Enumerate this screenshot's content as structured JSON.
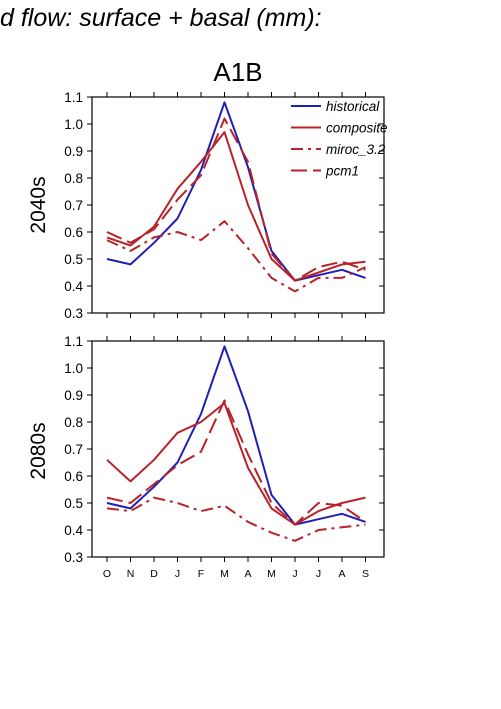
{
  "figure": {
    "title": "d flow: surface + basal (mm):",
    "scenario": "A1B"
  },
  "colors": {
    "historical": "#1f1fb8",
    "scenario": "#b8232a"
  },
  "chart_data": [
    {
      "type": "line",
      "panel_label": "2040s",
      "title": "A1B",
      "categories": [
        "O",
        "N",
        "D",
        "J",
        "F",
        "M",
        "A",
        "M",
        "J",
        "J",
        "A",
        "S"
      ],
      "ylim": [
        0.3,
        1.1
      ],
      "yticks": [
        0.3,
        0.4,
        0.5,
        0.6,
        0.7,
        0.8,
        0.9,
        1.0,
        1.1
      ],
      "ytick_labels": [
        "0.3",
        "0.4",
        "0.5",
        "0.6",
        "0.7",
        "0.8",
        "0.9",
        "1.0",
        "1.1"
      ],
      "grid": false,
      "legend_position": "top-right",
      "series": [
        {
          "name": "historical",
          "style": "solid",
          "color": "#1f1fb8",
          "values": [
            0.5,
            0.48,
            0.56,
            0.65,
            0.83,
            1.08,
            0.84,
            0.53,
            0.42,
            0.44,
            0.46,
            0.43
          ]
        },
        {
          "name": "composite",
          "style": "solid",
          "color": "#b8232a",
          "values": [
            0.58,
            0.55,
            0.62,
            0.76,
            0.86,
            0.97,
            0.7,
            0.5,
            0.42,
            0.45,
            0.48,
            0.49
          ]
        },
        {
          "name": "miroc_3.2",
          "style": "dashdot",
          "color": "#b8232a",
          "values": [
            0.57,
            0.53,
            0.58,
            0.6,
            0.57,
            0.64,
            0.54,
            0.43,
            0.38,
            0.43,
            0.43,
            0.47
          ]
        },
        {
          "name": "pcm1",
          "style": "dashed",
          "color": "#b8232a",
          "values": [
            0.6,
            0.56,
            0.61,
            0.72,
            0.81,
            1.02,
            0.86,
            0.52,
            0.42,
            0.47,
            0.49,
            0.46
          ]
        }
      ]
    },
    {
      "type": "line",
      "panel_label": "2080s",
      "categories": [
        "O",
        "N",
        "D",
        "J",
        "F",
        "M",
        "A",
        "M",
        "J",
        "J",
        "A",
        "S"
      ],
      "ylim": [
        0.3,
        1.1
      ],
      "yticks": [
        0.3,
        0.4,
        0.5,
        0.6,
        0.7,
        0.8,
        0.9,
        1.0,
        1.1
      ],
      "ytick_labels": [
        "0.3",
        "0.4",
        "0.5",
        "0.6",
        "0.7",
        "0.8",
        "0.9",
        "1.0",
        "1.1"
      ],
      "grid": false,
      "series": [
        {
          "name": "historical",
          "style": "solid",
          "color": "#1f1fb8",
          "values": [
            0.5,
            0.48,
            0.56,
            0.65,
            0.83,
            1.08,
            0.84,
            0.53,
            0.42,
            0.44,
            0.46,
            0.43
          ]
        },
        {
          "name": "composite",
          "style": "solid",
          "color": "#b8232a",
          "values": [
            0.66,
            0.58,
            0.66,
            0.76,
            0.8,
            0.87,
            0.63,
            0.48,
            0.42,
            0.47,
            0.5,
            0.52
          ]
        },
        {
          "name": "miroc_3.2",
          "style": "dashdot",
          "color": "#b8232a",
          "values": [
            0.48,
            0.47,
            0.52,
            0.5,
            0.47,
            0.49,
            0.43,
            0.39,
            0.36,
            0.4,
            0.41,
            0.42
          ]
        },
        {
          "name": "pcm1",
          "style": "dashed",
          "color": "#b8232a",
          "values": [
            0.52,
            0.5,
            0.57,
            0.64,
            0.69,
            0.88,
            0.68,
            0.5,
            0.42,
            0.5,
            0.49,
            0.43
          ]
        }
      ]
    }
  ]
}
